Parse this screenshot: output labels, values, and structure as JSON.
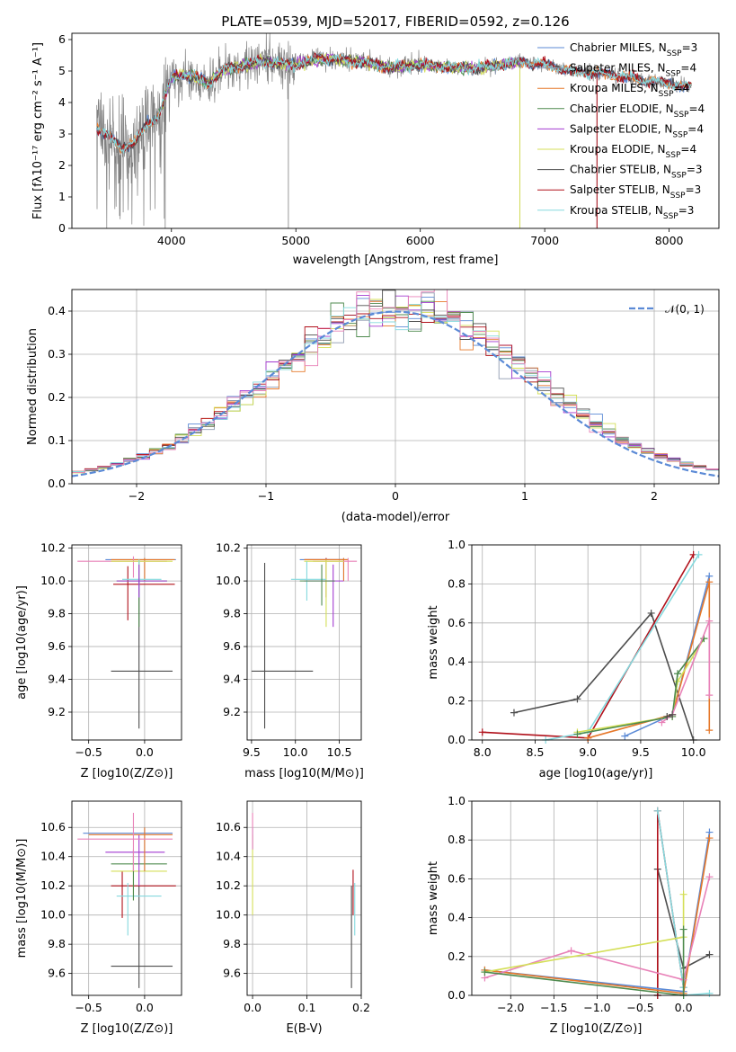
{
  "title": "PLATE=0539, MJD=52017, FIBERID=0592, z=0.126",
  "colors": {
    "Chabrier MILES": "#5b8ad6",
    "Salpeter MILES": "#8f9bb0",
    "Kroupa MILES": "#e6782a",
    "Chabrier ELODIE": "#4e8a4e",
    "Salpeter ELODIE": "#a23ad0",
    "Kroupa ELODIE": "#d4df58",
    "Chabrier STELIB": "#4d4d4d",
    "Salpeter STELIB": "#b0101a",
    "Kroupa STELIB": "#85d9de",
    "pink": "#e882b8",
    "data": "#808080"
  },
  "chart_data": [
    {
      "type": "line",
      "panel": "spectrum",
      "title": "PLATE=0539, MJD=52017, FIBERID=0592, z=0.126",
      "xlabel": "wavelength [Angstrom, rest frame]",
      "ylabel": "Flux [fλ10⁻¹⁷ erg cm⁻² s⁻¹ A⁻¹]",
      "xlim": [
        3200,
        8400
      ],
      "ylim": [
        0,
        6.2
      ],
      "xticks": [
        4000,
        5000,
        6000,
        7000,
        8000
      ],
      "yticks": [
        0,
        1,
        2,
        3,
        4,
        5,
        6
      ],
      "legend": [
        "Chabrier MILES, N_SSP=3",
        "Salpeter MILES, N_SSP=4",
        "Kroupa MILES, N_SSP=4",
        "Chabrier ELODIE, N_SSP=4",
        "Salpeter ELODIE, N_SSP=4",
        "Kroupa ELODIE, N_SSP=4",
        "Chabrier STELIB, N_SSP=3",
        "Salpeter STELIB, N_SSP=3",
        "Kroupa STELIB, N_SSP=3"
      ],
      "legend_placement": "upper-right",
      "continuum": {
        "x": [
          3400,
          3500,
          3600,
          3700,
          3800,
          3900,
          4000,
          4100,
          4200,
          4300,
          4400,
          4500,
          4700,
          5000,
          5200,
          5500,
          5800,
          6000,
          6300,
          6500,
          6800,
          7000,
          7200,
          7500,
          7800,
          8000,
          8150
        ],
        "y": [
          3.2,
          2.9,
          2.6,
          2.7,
          3.3,
          3.6,
          4.8,
          4.9,
          4.8,
          4.6,
          5.0,
          5.1,
          5.3,
          5.2,
          5.4,
          5.3,
          5.1,
          5.2,
          5.1,
          5.1,
          5.3,
          5.2,
          5.0,
          4.9,
          4.7,
          4.6,
          4.5
        ]
      }
    },
    {
      "type": "histogram",
      "panel": "residuals",
      "xlabel": "(data-model)/error",
      "ylabel": "Normed distribution",
      "xlim": [
        -2.5,
        2.5
      ],
      "ylim": [
        0,
        0.45
      ],
      "xticks": [
        -2,
        -1,
        0,
        1,
        2
      ],
      "yticks": [
        0.0,
        0.1,
        0.2,
        0.3,
        0.4
      ],
      "legend": [
        "𝒩(0, 1)"
      ],
      "legend_placement": "upper-right",
      "bin_width": 0.1,
      "reference_curve": "normal pdf mean 0 sigma 1"
    },
    {
      "type": "errorbar",
      "panel": "age-vs-metallicity",
      "xlabel": "Z [log10(Z/Z⊙)]",
      "ylabel": "age  [log10(age/yr)]",
      "xlim": [
        -0.65,
        0.33
      ],
      "ylim": [
        9.03,
        10.22
      ],
      "xticks": [
        -0.5,
        0.0
      ],
      "yticks": [
        9.2,
        9.4,
        9.6,
        9.8,
        10.0,
        10.2
      ],
      "points": [
        {
          "model": "Chabrier STELIB",
          "x": -0.05,
          "y": 9.45,
          "xlo": -0.3,
          "xhi": 0.25,
          "ylo": 9.1,
          "yhi": 10.12
        },
        {
          "model": "Salpeter STELIB",
          "x": -0.15,
          "y": 9.98,
          "xlo": -0.28,
          "xhi": 0.27,
          "ylo": 9.76,
          "yhi": 10.09
        },
        {
          "model": "Chabrier MILES",
          "x": 0.0,
          "y": 10.13,
          "xlo": -0.35,
          "xhi": 0.28,
          "ylo": 10.0,
          "yhi": 10.14
        },
        {
          "model": "Kroupa MILES",
          "x": 0.0,
          "y": 10.13,
          "xlo": -0.3,
          "xhi": 0.27,
          "ylo": 10.0,
          "yhi": 10.14
        },
        {
          "model": "pink",
          "x": -0.1,
          "y": 10.12,
          "xlo": -0.6,
          "xhi": 0.2,
          "ylo": 10.02,
          "yhi": 10.15
        },
        {
          "model": "Kroupa ELODIE",
          "x": -0.05,
          "y": 10.12,
          "xlo": -0.3,
          "xhi": 0.25,
          "ylo": 10.0,
          "yhi": 10.13
        },
        {
          "model": "Chabrier ELODIE",
          "x": -0.05,
          "y": 10.0,
          "xlo": -0.25,
          "xhi": 0.2,
          "ylo": 9.72,
          "yhi": 10.02
        },
        {
          "model": "Kroupa STELIB",
          "x": -0.05,
          "y": 10.01,
          "xlo": -0.2,
          "xhi": 0.15,
          "ylo": 9.9,
          "yhi": 10.13
        },
        {
          "model": "Salpeter ELODIE",
          "x": -0.05,
          "y": 10.0,
          "xlo": -0.25,
          "xhi": 0.2,
          "ylo": 9.9,
          "yhi": 10.1
        }
      ]
    },
    {
      "type": "errorbar",
      "panel": "age-vs-mass",
      "xlabel": "mass [log10(M/M⊙)]",
      "ylabel": "",
      "xlim": [
        9.45,
        10.75
      ],
      "ylim": [
        9.03,
        10.22
      ],
      "xticks": [
        9.5,
        10.0,
        10.5
      ],
      "yticks": [
        9.2,
        9.4,
        9.6,
        9.8,
        10.0,
        10.2
      ],
      "points": [
        {
          "model": "Chabrier STELIB",
          "x": 9.65,
          "y": 9.45,
          "xlo": 9.5,
          "xhi": 10.2,
          "ylo": 9.1,
          "yhi": 10.11
        },
        {
          "model": "Salpeter STELIB",
          "x": 10.35,
          "y": 10.13,
          "xlo": 10.1,
          "xhi": 10.55,
          "ylo": 9.9,
          "yhi": 10.14
        },
        {
          "model": "Chabrier MILES",
          "x": 10.55,
          "y": 10.13,
          "xlo": 10.05,
          "xhi": 10.6,
          "ylo": 10.0,
          "yhi": 10.14
        },
        {
          "model": "Kroupa MILES",
          "x": 10.55,
          "y": 10.13,
          "xlo": 10.1,
          "xhi": 10.6,
          "ylo": 10.0,
          "yhi": 10.14
        },
        {
          "model": "pink",
          "x": 10.6,
          "y": 10.12,
          "xlo": 10.2,
          "xhi": 10.7,
          "ylo": 10.0,
          "yhi": 10.14
        },
        {
          "model": "Salpeter ELODIE",
          "x": 10.43,
          "y": 10.0,
          "xlo": 10.1,
          "xhi": 10.55,
          "ylo": 9.72,
          "yhi": 10.1
        },
        {
          "model": "Kroupa ELODIE",
          "x": 10.35,
          "y": 10.12,
          "xlo": 10.1,
          "xhi": 10.55,
          "ylo": 9.72,
          "yhi": 10.13
        },
        {
          "model": "Kroupa STELIB",
          "x": 10.13,
          "y": 10.01,
          "xlo": 9.95,
          "xhi": 10.35,
          "ylo": 9.88,
          "yhi": 10.12
        },
        {
          "model": "Chabrier ELODIE",
          "x": 10.3,
          "y": 10.0,
          "xlo": 10.05,
          "xhi": 10.45,
          "ylo": 9.85,
          "yhi": 10.1
        }
      ]
    },
    {
      "type": "line",
      "panel": "mass-weight-vs-age",
      "xlabel": "age  [log10(age/yr)]",
      "ylabel": "mass weight",
      "xlim": [
        7.9,
        10.25
      ],
      "ylim": [
        0,
        1.0
      ],
      "xticks": [
        8.0,
        8.5,
        9.0,
        9.5,
        10.0
      ],
      "yticks": [
        0.0,
        0.2,
        0.4,
        0.6,
        0.8,
        1.0
      ],
      "series": [
        {
          "model": "Chabrier STELIB",
          "x": [
            8.3,
            8.9,
            9.6,
            10.0
          ],
          "y": [
            0.14,
            0.21,
            0.65,
            0.0
          ]
        },
        {
          "model": "Salpeter STELIB",
          "x": [
            8.0,
            9.0,
            10.0
          ],
          "y": [
            0.04,
            0.01,
            0.95
          ]
        },
        {
          "model": "Kroupa STELIB",
          "x": [
            8.6,
            9.0,
            10.05
          ],
          "y": [
            0.0,
            0.04,
            0.95
          ]
        },
        {
          "model": "Chabrier MILES",
          "x": [
            9.35,
            9.8,
            10.15
          ],
          "y": [
            0.02,
            0.13,
            0.84
          ]
        },
        {
          "model": "Kroupa MILES",
          "x": [
            9.0,
            9.8,
            10.15,
            10.15
          ],
          "y": [
            0.01,
            0.13,
            0.81,
            0.05
          ]
        },
        {
          "model": "Kroupa ELODIE",
          "x": [
            8.9,
            9.8,
            9.85,
            10.1
          ],
          "y": [
            0.04,
            0.12,
            0.3,
            0.52
          ]
        },
        {
          "model": "Chabrier ELODIE",
          "x": [
            8.9,
            9.8,
            9.85,
            10.1
          ],
          "y": [
            0.03,
            0.12,
            0.34,
            0.52
          ]
        },
        {
          "model": "pink",
          "x": [
            9.7,
            9.8,
            10.15,
            10.15
          ],
          "y": [
            0.09,
            0.13,
            0.61,
            0.23
          ]
        },
        {
          "model": "Chabrier STELIB",
          "x": [
            9.75,
            9.8
          ],
          "y": [
            0.12,
            0.13
          ]
        }
      ]
    },
    {
      "type": "errorbar",
      "panel": "mass-vs-metallicity",
      "xlabel": "Z [log10(Z/Z⊙)]",
      "ylabel": "mass [log10(M/M⊙)]",
      "xlim": [
        -0.65,
        0.33
      ],
      "ylim": [
        9.45,
        10.78
      ],
      "xticks": [
        -0.5,
        0.0
      ],
      "yticks": [
        9.6,
        9.8,
        10.0,
        10.2,
        10.4,
        10.6
      ],
      "points": [
        {
          "model": "Chabrier STELIB",
          "x": -0.05,
          "y": 9.65,
          "xlo": -0.3,
          "xhi": 0.25,
          "ylo": 9.5,
          "yhi": 10.2
        },
        {
          "model": "Salpeter STELIB",
          "x": -0.2,
          "y": 10.2,
          "xlo": -0.3,
          "xhi": 0.28,
          "ylo": 9.98,
          "yhi": 10.3
        },
        {
          "model": "Kroupa STELIB",
          "x": -0.15,
          "y": 10.13,
          "xlo": -0.25,
          "xhi": 0.15,
          "ylo": 9.86,
          "yhi": 10.22
        },
        {
          "model": "Kroupa ELODIE",
          "x": -0.1,
          "y": 10.3,
          "xlo": -0.3,
          "xhi": 0.2,
          "ylo": 10.1,
          "yhi": 10.4
        },
        {
          "model": "Chabrier ELODIE",
          "x": -0.1,
          "y": 10.35,
          "xlo": -0.3,
          "xhi": 0.2,
          "ylo": 10.1,
          "yhi": 10.45
        },
        {
          "model": "Salpeter ELODIE",
          "x": -0.05,
          "y": 10.43,
          "xlo": -0.35,
          "xhi": 0.18,
          "ylo": 10.2,
          "yhi": 10.55
        },
        {
          "model": "Chabrier MILES",
          "x": 0.0,
          "y": 10.56,
          "xlo": -0.55,
          "xhi": 0.25,
          "ylo": 10.3,
          "yhi": 10.6
        },
        {
          "model": "Kroupa MILES",
          "x": 0.0,
          "y": 10.55,
          "xlo": -0.5,
          "xhi": 0.25,
          "ylo": 10.3,
          "yhi": 10.6
        },
        {
          "model": "pink",
          "x": -0.1,
          "y": 10.52,
          "xlo": -0.6,
          "xhi": 0.25,
          "ylo": 10.3,
          "yhi": 10.7
        }
      ]
    },
    {
      "type": "errorbar",
      "panel": "mass-vs-ebv",
      "xlabel": "E(B-V)",
      "ylabel": "",
      "xlim": [
        -0.01,
        0.2
      ],
      "ylim": [
        9.45,
        10.78
      ],
      "xticks": [
        0.0,
        0.1,
        0.2
      ],
      "yticks": [
        9.6,
        9.8,
        10.0,
        10.2,
        10.4,
        10.6
      ],
      "points": [
        {
          "model": "Kroupa ELODIE",
          "x": 0.0,
          "y": 10.3,
          "xlo": 0.0,
          "xhi": 0.0,
          "ylo": 10.0,
          "yhi": 10.55
        },
        {
          "model": "Chabrier MILES",
          "x": 0.0,
          "y": 10.55,
          "xlo": 0.0,
          "xhi": 0.0,
          "ylo": 10.45,
          "yhi": 10.6
        },
        {
          "model": "pink",
          "x": 0.0,
          "y": 10.55,
          "xlo": 0.0,
          "xhi": 0.0,
          "ylo": 10.45,
          "yhi": 10.7
        },
        {
          "model": "Chabrier STELIB",
          "x": 0.182,
          "y": 9.65,
          "xlo": 0.182,
          "xhi": 0.182,
          "ylo": 9.5,
          "yhi": 10.2
        },
        {
          "model": "Salpeter STELIB",
          "x": 0.185,
          "y": 10.2,
          "xlo": 0.185,
          "xhi": 0.185,
          "ylo": 10.0,
          "yhi": 10.31
        },
        {
          "model": "Kroupa STELIB",
          "x": 0.188,
          "y": 10.13,
          "xlo": 0.188,
          "xhi": 0.188,
          "ylo": 9.86,
          "yhi": 10.22
        }
      ]
    },
    {
      "type": "line",
      "panel": "mass-weight-vs-metallicity",
      "xlabel": "Z [log10(Z/Z⊙)]",
      "ylabel": "mass weight",
      "xlim": [
        -2.45,
        0.42
      ],
      "ylim": [
        0,
        1.0
      ],
      "xticks": [
        -2.0,
        -1.5,
        -1.0,
        -0.5,
        0.0
      ],
      "yticks": [
        0.0,
        0.2,
        0.4,
        0.6,
        0.8,
        1.0
      ],
      "series": [
        {
          "model": "Chabrier STELIB",
          "x": [
            -0.3,
            -0.3,
            0.0,
            0.3
          ],
          "y": [
            0.0,
            0.65,
            0.14,
            0.21
          ]
        },
        {
          "model": "Salpeter STELIB",
          "x": [
            -0.3,
            -0.3,
            0.0
          ],
          "y": [
            0.0,
            0.95,
            0.04
          ]
        },
        {
          "model": "Kroupa STELIB",
          "x": [
            -0.3,
            0.0,
            0.0,
            0.3
          ],
          "y": [
            0.95,
            0.04,
            0.0,
            0.01
          ]
        },
        {
          "model": "Chabrier MILES",
          "x": [
            -2.3,
            0.0,
            0.3
          ],
          "y": [
            0.13,
            0.02,
            0.84
          ]
        },
        {
          "model": "Kroupa MILES",
          "x": [
            -2.3,
            0.0,
            0.3
          ],
          "y": [
            0.13,
            0.01,
            0.81
          ]
        },
        {
          "model": "pink",
          "x": [
            -2.3,
            -1.3,
            0.0,
            0.3
          ],
          "y": [
            0.09,
            0.23,
            0.08,
            0.61
          ]
        },
        {
          "model": "Kroupa ELODIE",
          "x": [
            -2.3,
            0.0,
            0.0
          ],
          "y": [
            0.12,
            0.3,
            0.52
          ]
        },
        {
          "model": "Chabrier ELODIE",
          "x": [
            -2.3,
            0.0,
            0.0
          ],
          "y": [
            0.12,
            0.0,
            0.34
          ]
        }
      ]
    }
  ]
}
